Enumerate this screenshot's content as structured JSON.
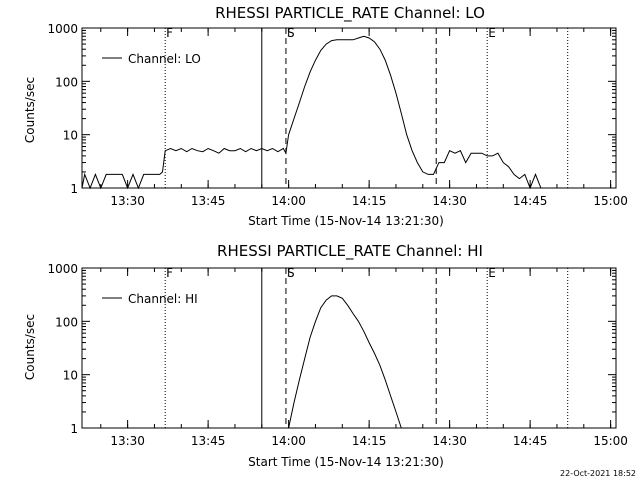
{
  "footer": {
    "timestamp": "22-Oct-2021 18:52"
  },
  "chart_data": [
    {
      "type": "line",
      "title": "RHESSI PARTICLE_RATE Channel: LO",
      "xlabel": "Start Time (15-Nov-14 13:21:30)",
      "ylabel": "Counts/sec",
      "yscale": "log",
      "ylim": [
        1,
        1000
      ],
      "xlim": [
        "13:21:30",
        "15:01:00"
      ],
      "x_ticks": [
        "13:30",
        "13:45",
        "14:00",
        "14:15",
        "14:30",
        "14:45",
        "15:00"
      ],
      "y_ticks": [
        "1",
        "10",
        "100",
        "1000"
      ],
      "legend": {
        "label": "Channel: LO",
        "position": "top-left"
      },
      "markers": [
        {
          "label": "F",
          "time": "13:37:00",
          "style": "dotted"
        },
        {
          "label": "",
          "time": "13:55:00",
          "style": "solid"
        },
        {
          "label": "S",
          "time": "13:59:30",
          "style": "dashed"
        },
        {
          "label": "",
          "time": "14:27:30",
          "style": "dashed"
        },
        {
          "label": "E",
          "time": "14:37:00",
          "style": "dotted"
        },
        {
          "label": "",
          "time": "14:52:00",
          "style": "dotted"
        }
      ],
      "series": [
        {
          "x": [
            "13:21:30",
            "13:22:00",
            "13:23:00",
            "13:24:00",
            "13:25:00",
            "13:26:00",
            "13:27:00",
            "13:28:00",
            "13:29:00",
            "13:30:00",
            "13:31:00",
            "13:32:00",
            "13:33:00",
            "13:34:00",
            "13:35:00",
            "13:36:00",
            "13:36:30",
            "13:37:00",
            "13:38:00",
            "13:39:00",
            "13:40:00",
            "13:41:00",
            "13:42:00",
            "13:43:00",
            "13:44:00",
            "13:45:00",
            "13:46:00",
            "13:47:00",
            "13:48:00",
            "13:49:00",
            "13:50:00",
            "13:51:00",
            "13:52:00",
            "13:53:00",
            "13:54:00",
            "13:55:00",
            "13:56:00",
            "13:57:00",
            "13:58:00",
            "13:59:00",
            "13:59:30",
            "14:00:00",
            "14:01:00",
            "14:02:00",
            "14:03:00",
            "14:04:00",
            "14:05:00",
            "14:06:00",
            "14:07:00",
            "14:08:00",
            "14:09:00",
            "14:10:00",
            "14:11:00",
            "14:12:00",
            "14:13:00",
            "14:14:00",
            "14:15:00",
            "14:16:00",
            "14:17:00",
            "14:18:00",
            "14:19:00",
            "14:20:00",
            "14:21:00",
            "14:22:00",
            "14:23:00",
            "14:24:00",
            "14:25:00",
            "14:26:00",
            "14:27:00",
            "14:28:00",
            "14:29:00",
            "14:30:00",
            "14:31:00",
            "14:32:00",
            "14:33:00",
            "14:34:00",
            "14:35:00",
            "14:36:00",
            "14:37:00",
            "14:38:00",
            "14:39:00",
            "14:40:00",
            "14:41:00",
            "14:42:00",
            "14:43:00",
            "14:44:00",
            "14:45:00",
            "14:46:00",
            "14:47:00",
            "14:48:00",
            "14:49:00",
            "14:50:00",
            "14:51:00",
            "14:52:00"
          ],
          "y": [
            1,
            1.8,
            1,
            1.8,
            1,
            1.8,
            1.8,
            1.8,
            1.8,
            1,
            1.8,
            1,
            1.8,
            1.8,
            1.8,
            1.8,
            2,
            5,
            5.5,
            5,
            5.5,
            4.8,
            5.5,
            5,
            4.8,
            5.5,
            5,
            4.5,
            5.5,
            5,
            5,
            5.5,
            4.8,
            5.5,
            5,
            5.5,
            5,
            5.5,
            4.8,
            5.5,
            4.5,
            10,
            20,
            40,
            80,
            150,
            250,
            380,
            500,
            580,
            600,
            600,
            600,
            600,
            650,
            700,
            650,
            550,
            400,
            250,
            130,
            60,
            25,
            10,
            5,
            3,
            2,
            1.8,
            1.8,
            3,
            3,
            5,
            4.5,
            5,
            3,
            4.5,
            4.5,
            4.5,
            4,
            4,
            4.5,
            3,
            2.5,
            1.8,
            1.5,
            1.8,
            1,
            1.8,
            1,
            1,
            1,
            1,
            1,
            1
          ]
        }
      ]
    },
    {
      "type": "line",
      "title": "RHESSI PARTICLE_RATE Channel: HI",
      "xlabel": "Start Time (15-Nov-14 13:21:30)",
      "ylabel": "Counts/sec",
      "yscale": "log",
      "ylim": [
        1,
        1000
      ],
      "xlim": [
        "13:21:30",
        "15:01:00"
      ],
      "x_ticks": [
        "13:30",
        "13:45",
        "14:00",
        "14:15",
        "14:30",
        "14:45",
        "15:00"
      ],
      "y_ticks": [
        "1",
        "10",
        "100",
        "1000"
      ],
      "legend": {
        "label": "Channel: HI",
        "position": "top-left"
      },
      "markers": [
        {
          "label": "F",
          "time": "13:37:00",
          "style": "dotted"
        },
        {
          "label": "",
          "time": "13:55:00",
          "style": "solid"
        },
        {
          "label": "S",
          "time": "13:59:30",
          "style": "dashed"
        },
        {
          "label": "",
          "time": "14:27:30",
          "style": "dashed"
        },
        {
          "label": "E",
          "time": "14:37:00",
          "style": "dotted"
        },
        {
          "label": "",
          "time": "14:52:00",
          "style": "dotted"
        }
      ],
      "series": [
        {
          "x": [
            "14:00:00",
            "14:01:00",
            "14:02:00",
            "14:03:00",
            "14:04:00",
            "14:05:00",
            "14:06:00",
            "14:07:00",
            "14:08:00",
            "14:09:00",
            "14:10:00",
            "14:11:00",
            "14:12:00",
            "14:13:00",
            "14:14:00",
            "14:15:00",
            "14:16:00",
            "14:17:00",
            "14:18:00",
            "14:19:00",
            "14:20:00",
            "14:21:00"
          ],
          "y": [
            1,
            3,
            8,
            20,
            50,
            100,
            180,
            250,
            300,
            300,
            270,
            200,
            140,
            100,
            65,
            40,
            25,
            15,
            8,
            4,
            2,
            1
          ]
        }
      ]
    }
  ]
}
